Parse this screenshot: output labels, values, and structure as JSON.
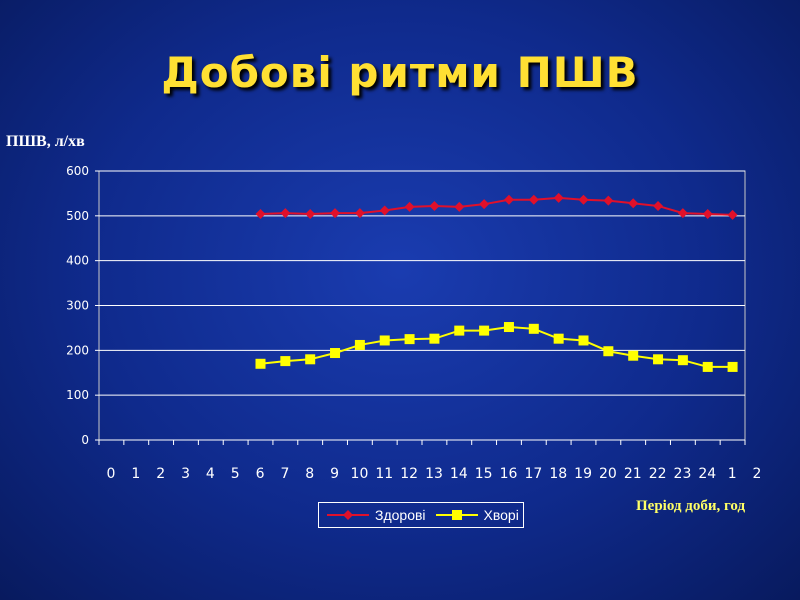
{
  "title": "Добові ритми ПШВ",
  "chart_data": {
    "type": "line",
    "ylabel": "ПШВ, л/хв",
    "xlabel": "Період доби, год",
    "categories": [
      "0",
      "1",
      "2",
      "3",
      "4",
      "5",
      "6",
      "7",
      "8",
      "9",
      "10",
      "11",
      "12",
      "13",
      "14",
      "15",
      "16",
      "17",
      "18",
      "19",
      "20",
      "21",
      "22",
      "23",
      "24",
      "1",
      "2"
    ],
    "ylim": [
      0,
      600
    ],
    "yticks": [
      0,
      100,
      200,
      300,
      400,
      500,
      600
    ],
    "grid": true,
    "legend_position": "bottom",
    "series": [
      {
        "name": "Здорові",
        "color": "#e0102a",
        "marker": "diamond",
        "values": [
          null,
          null,
          null,
          null,
          null,
          null,
          504,
          506,
          504,
          506,
          506,
          512,
          520,
          522,
          520,
          526,
          536,
          536,
          540,
          536,
          534,
          528,
          522,
          506,
          504,
          502,
          null
        ]
      },
      {
        "name": "Хворі",
        "color": "#ffff00",
        "marker": "square",
        "values": [
          null,
          null,
          null,
          null,
          null,
          null,
          170,
          176,
          180,
          194,
          212,
          222,
          225,
          226,
          244,
          244,
          252,
          248,
          226,
          222,
          198,
          188,
          180,
          178,
          163,
          163,
          null
        ]
      }
    ]
  }
}
